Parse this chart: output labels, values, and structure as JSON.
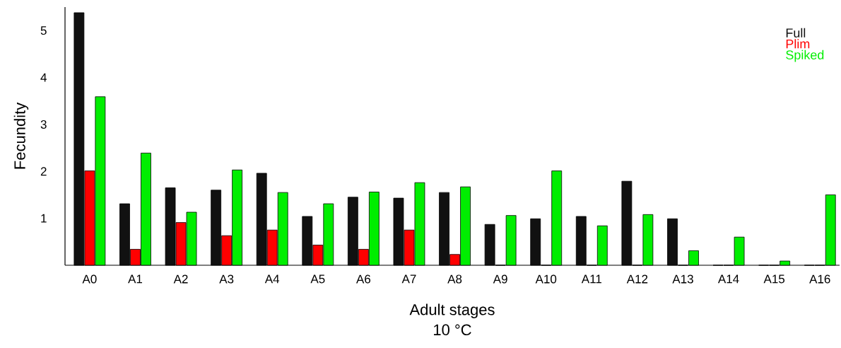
{
  "chart_data": {
    "type": "bar",
    "xlabel": "Adult stages",
    "ylabel": "Fecundity",
    "annotations": [
      "10 °C"
    ],
    "categories": [
      "A0",
      "A1",
      "A2",
      "A3",
      "A4",
      "A5",
      "A6",
      "A7",
      "A8",
      "A9",
      "A10",
      "A11",
      "A12",
      "A13",
      "A14",
      "A15",
      "A16"
    ],
    "series": [
      {
        "name": "Full",
        "color": "#111111",
        "values": [
          5.38,
          1.31,
          1.65,
          1.6,
          1.96,
          1.04,
          1.45,
          1.43,
          1.55,
          0.87,
          0.99,
          1.04,
          1.79,
          0.99,
          0,
          0,
          0
        ]
      },
      {
        "name": "Plim",
        "color": "#ff0000",
        "values": [
          2.01,
          0.34,
          0.91,
          0.63,
          0.75,
          0.43,
          0.34,
          0.75,
          0.23,
          0,
          0,
          0,
          0,
          0,
          0,
          0,
          0
        ]
      },
      {
        "name": "Spiked",
        "color": "#00ee00",
        "values": [
          3.59,
          2.39,
          1.13,
          2.03,
          1.55,
          1.31,
          1.56,
          1.76,
          1.67,
          1.06,
          2.01,
          0.84,
          1.08,
          0.31,
          0.6,
          0.09,
          1.5
        ]
      }
    ],
    "ylim": [
      0,
      5.5
    ],
    "yticks": [
      1,
      2,
      3,
      4,
      5
    ],
    "legend": "top right",
    "grid": false
  }
}
